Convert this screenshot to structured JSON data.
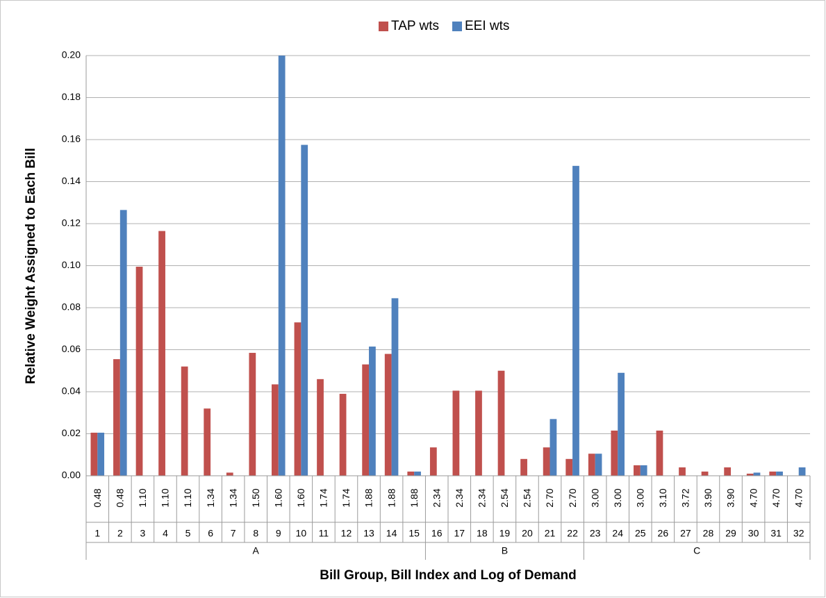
{
  "chart_data": {
    "type": "bar",
    "x_label": "Bill Group, Bill Index and Log of Demand",
    "y_label": "Relative Weight Assigned to Each Bill",
    "categories": [
      "1",
      "2",
      "3",
      "4",
      "5",
      "6",
      "7",
      "8",
      "9",
      "10",
      "11",
      "12",
      "13",
      "14",
      "15",
      "16",
      "17",
      "18",
      "19",
      "20",
      "21",
      "22",
      "23",
      "24",
      "25",
      "26",
      "27",
      "28",
      "29",
      "30",
      "31",
      "32"
    ],
    "log_demand": [
      "0.48",
      "0.48",
      "1.10",
      "1.10",
      "1.10",
      "1.34",
      "1.34",
      "1.50",
      "1.60",
      "1.60",
      "1.74",
      "1.74",
      "1.88",
      "1.88",
      "1.88",
      "2.34",
      "2.34",
      "2.34",
      "2.54",
      "2.54",
      "2.70",
      "2.70",
      "3.00",
      "3.00",
      "3.00",
      "3.10",
      "3.72",
      "3.90",
      "3.90",
      "4.70",
      "4.70",
      "4.70"
    ],
    "category_groups": [
      "A",
      "A",
      "A",
      "A",
      "A",
      "A",
      "A",
      "A",
      "A",
      "A",
      "A",
      "A",
      "A",
      "A",
      "A",
      "B",
      "B",
      "B",
      "B",
      "B",
      "B",
      "B",
      "C",
      "C",
      "C",
      "C",
      "C",
      "C",
      "C",
      "C",
      "C",
      "C"
    ],
    "series": [
      {
        "name": "TAP wts",
        "color": "#c0504d",
        "values": [
          0.0205,
          0.0555,
          0.0995,
          0.1165,
          0.052,
          0.032,
          0.0015,
          0.0585,
          0.0435,
          0.073,
          0.046,
          0.039,
          0.053,
          0.058,
          0.002,
          0.0135,
          0.0405,
          0.0405,
          0.05,
          0.008,
          0.0135,
          0.008,
          0.0105,
          0.0215,
          0.005,
          0.0215,
          0.004,
          0.002,
          0.004,
          0.001,
          0.002,
          0
        ]
      },
      {
        "name": "EEI wts",
        "color": "#4f81bd",
        "values": [
          0.0205,
          0.1265,
          0,
          0,
          0,
          0,
          0,
          0,
          0.2,
          0.1575,
          0,
          0,
          0.0615,
          0.0845,
          0.002,
          0,
          0,
          0,
          0,
          0,
          0.027,
          0.1475,
          0.0105,
          0.049,
          0.005,
          0,
          0,
          0,
          0,
          0.0015,
          0.002,
          0.004
        ]
      }
    ],
    "ylim": [
      0,
      0.2
    ],
    "yticks": [
      {
        "value": 0,
        "label": "0.00"
      },
      {
        "value": 0.02,
        "label": "0.02"
      },
      {
        "value": 0.04,
        "label": "0.04"
      },
      {
        "value": 0.06,
        "label": "0.06"
      },
      {
        "value": 0.08,
        "label": "0.08"
      },
      {
        "value": 0.1,
        "label": "0.10"
      },
      {
        "value": 0.12,
        "label": "0.12"
      },
      {
        "value": 0.14,
        "label": "0.14"
      },
      {
        "value": 0.16,
        "label": "0.16"
      },
      {
        "value": 0.18,
        "label": "0.18"
      },
      {
        "value": 0.2,
        "label": "0.20"
      }
    ],
    "grid": true,
    "legend": "top"
  }
}
